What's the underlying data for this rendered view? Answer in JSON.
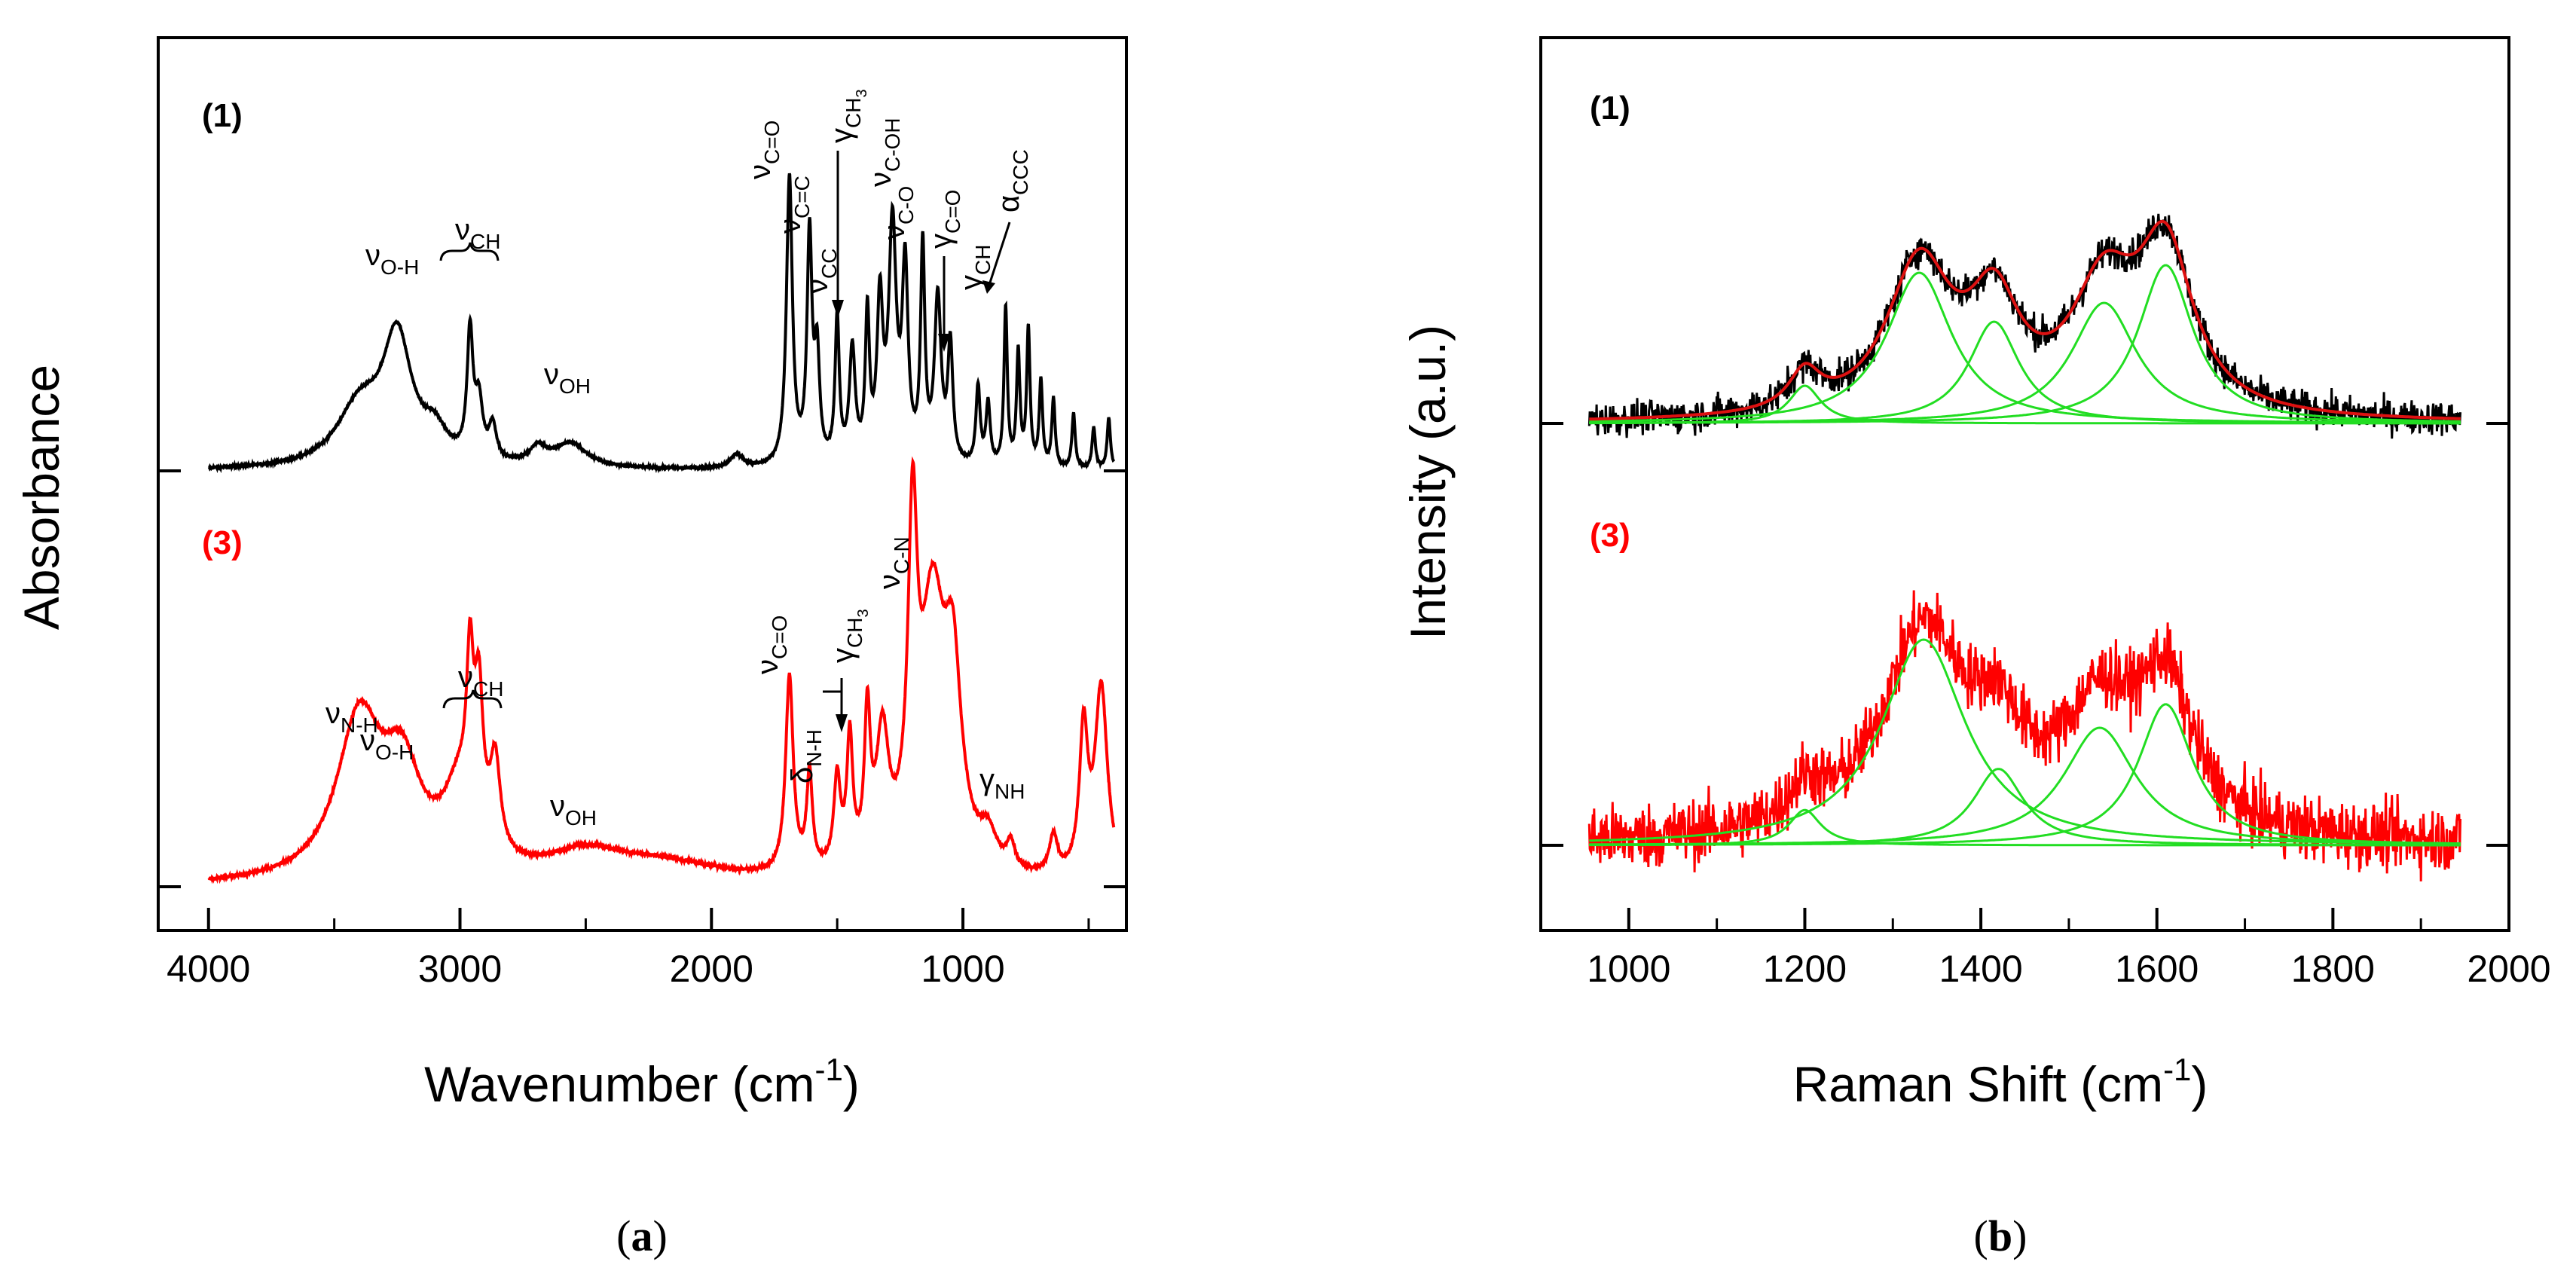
{
  "figure": {
    "caption_a": "a",
    "caption_b": "b"
  },
  "chart_data": [
    {
      "type": "line",
      "panel": "a",
      "xlabel": "Wavenumber (cm",
      "xlabel_sup": "-1",
      "xlabel_close": ")",
      "ylabel": "Absorbance",
      "xlim": [
        4200,
        350
      ],
      "ylim": [
        0,
        1
      ],
      "x_reversed": true,
      "x_ticks": [
        4000,
        3000,
        2000,
        1000
      ],
      "series": [
        {
          "name": "(1)",
          "color": "#000000",
          "baseline": 0.0,
          "noise": 0.0025,
          "x_range": [
            4000,
            400
          ],
          "peaks": [
            [
              3250,
              0.36,
              70
            ],
            [
              3400,
              0.17,
              110
            ],
            [
              3100,
              0.08,
              60
            ],
            [
              2960,
              0.36,
              14
            ],
            [
              2925,
              0.16,
              18
            ],
            [
              2870,
              0.1,
              18
            ],
            [
              2690,
              0.05,
              40
            ],
            [
              2560,
              0.07,
              80
            ],
            [
              1900,
              0.04,
              30
            ],
            [
              1690,
              0.84,
              14
            ],
            [
              1610,
              0.66,
              12
            ],
            [
              1580,
              0.3,
              12
            ],
            [
              1500,
              0.42,
              10
            ],
            [
              1440,
              0.33,
              14
            ],
            [
              1380,
              0.42,
              10
            ],
            [
              1330,
              0.45,
              14
            ],
            [
              1280,
              0.68,
              18
            ],
            [
              1230,
              0.55,
              14
            ],
            [
              1160,
              0.62,
              10
            ],
            [
              1100,
              0.48,
              16
            ],
            [
              1050,
              0.34,
              12
            ],
            [
              940,
              0.23,
              10
            ],
            [
              900,
              0.18,
              10
            ],
            [
              830,
              0.46,
              8
            ],
            [
              780,
              0.33,
              8
            ],
            [
              740,
              0.4,
              8
            ],
            [
              690,
              0.25,
              8
            ],
            [
              640,
              0.2,
              8
            ],
            [
              560,
              0.16,
              8
            ],
            [
              480,
              0.12,
              8
            ],
            [
              420,
              0.15,
              8
            ]
          ]
        },
        {
          "name": "(3)",
          "color": "#ff0000",
          "baseline": 0.0,
          "noise": 0.004,
          "x_range": [
            4000,
            400
          ],
          "peaks": [
            [
              3400,
              0.5,
              110
            ],
            [
              3230,
              0.3,
              90
            ],
            [
              3000,
              0.25,
              80
            ],
            [
              2960,
              0.45,
              16
            ],
            [
              2925,
              0.42,
              20
            ],
            [
              2860,
              0.28,
              24
            ],
            [
              2500,
              0.08,
              180
            ],
            [
              2200,
              0.06,
              300
            ],
            [
              1690,
              0.62,
              18
            ],
            [
              1610,
              0.3,
              14
            ],
            [
              1500,
              0.28,
              16
            ],
            [
              1450,
              0.4,
              14
            ],
            [
              1380,
              0.45,
              14
            ],
            [
              1320,
              0.4,
              30
            ],
            [
              1200,
              0.97,
              22
            ],
            [
              1120,
              0.82,
              60
            ],
            [
              1040,
              0.55,
              40
            ],
            [
              900,
              0.1,
              40
            ],
            [
              810,
              0.08,
              20
            ],
            [
              640,
              0.12,
              20
            ],
            [
              520,
              0.45,
              20
            ],
            [
              450,
              0.6,
              30
            ]
          ]
        }
      ],
      "labels": {
        "s1": "(1)",
        "s3": "(3)",
        "nu": "ν",
        "gamma": "γ",
        "delta": "δ",
        "alpha": "α",
        "sub_OH_dash": "O-H",
        "sub_CH": "CH",
        "sub_OH": "OH",
        "sub_CO_double": "C=O",
        "sub_CC_double": "C=C",
        "sub_CC": "CC",
        "sub_CH3": "CH",
        "sub_3": "3",
        "sub_COH": "C-OH",
        "sub_CO_single": "C-O",
        "sub_CCC": "CCC",
        "sub_NH_dash": "N-H",
        "sub_CN": "C-N",
        "sub_NH": "NH"
      }
    },
    {
      "type": "line",
      "panel": "b",
      "xlabel": "Raman Shift (cm",
      "xlabel_sup": "-1",
      "xlabel_close": ")",
      "ylabel": "Intensity (a.u.)",
      "xlim": [
        900,
        2000
      ],
      "ylim": [
        0,
        1
      ],
      "x_ticks": [
        1000,
        1200,
        1400,
        1600,
        1800,
        2000
      ],
      "bands": [
        1200,
        1330,
        1420,
        1540,
        1610
      ],
      "series": [
        {
          "name": "(1)",
          "color": "#000000",
          "fit_color": "#dd1111",
          "component_color": "#22dd22",
          "noise": 0.022,
          "x_range": [
            955,
            1945
          ],
          "components": [
            [
              1200,
              0.05,
              22
            ],
            [
              1330,
              0.2,
              45
            ],
            [
              1415,
              0.135,
              35
            ],
            [
              1540,
              0.16,
              45
            ],
            [
              1610,
              0.21,
              38
            ]
          ]
        },
        {
          "name": "(3)",
          "color": "#ff0000",
          "component_color": "#22dd22",
          "noise": 0.055,
          "x_range": [
            955,
            1945
          ],
          "components": [
            [
              1200,
              0.06,
              22
            ],
            [
              1335,
              0.35,
              58
            ],
            [
              1420,
              0.13,
              35
            ],
            [
              1535,
              0.2,
              50
            ],
            [
              1610,
              0.24,
              38
            ]
          ]
        }
      ],
      "labels": {
        "s1": "(1)",
        "s3": "(3)"
      }
    }
  ]
}
